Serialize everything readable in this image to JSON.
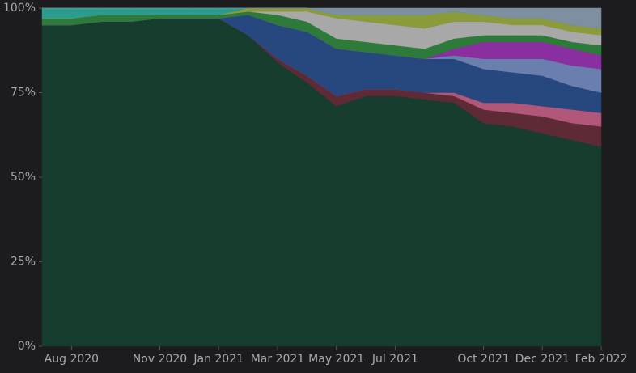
{
  "chart_data": {
    "type": "area",
    "stacked": true,
    "x": [
      "2020-07",
      "2020-08",
      "2020-09",
      "2020-10",
      "2020-11",
      "2020-12",
      "2021-01",
      "2021-02",
      "2021-03",
      "2021-04",
      "2021-05",
      "2021-06",
      "2021-07",
      "2021-08",
      "2021-09",
      "2021-10",
      "2021-11",
      "2021-12",
      "2022-01",
      "2022-02"
    ],
    "series": [
      {
        "color": "#163d2e",
        "values": [
          95,
          95,
          96,
          96,
          97,
          97,
          97,
          92,
          84,
          78,
          71,
          74,
          74,
          73,
          72,
          66,
          65,
          63,
          61,
          59
        ]
      },
      {
        "color": "#5e2a35",
        "values": [
          0,
          0,
          0,
          0,
          0,
          0,
          0,
          0,
          1,
          2,
          3,
          2,
          2,
          2,
          2,
          4,
          4,
          5,
          5,
          6
        ]
      },
      {
        "color": "#b0577a",
        "values": [
          0,
          0,
          0,
          0,
          0,
          0,
          0,
          0,
          0,
          0,
          0,
          0,
          0,
          0,
          1,
          2,
          3,
          3,
          4,
          4
        ]
      },
      {
        "color": "#27477f",
        "values": [
          0,
          0,
          0,
          0,
          0,
          0,
          0,
          6,
          10,
          13,
          14,
          11,
          10,
          10,
          10,
          10,
          9,
          9,
          7,
          6
        ]
      },
      {
        "color": "#6b7fae",
        "values": [
          0,
          0,
          0,
          0,
          0,
          0,
          0,
          0,
          0,
          0,
          0,
          0,
          0,
          0,
          1,
          3,
          4,
          5,
          6,
          7
        ]
      },
      {
        "color": "#8a2fa0",
        "values": [
          0,
          0,
          0,
          0,
          0,
          0,
          0,
          0,
          0,
          0,
          0,
          0,
          0,
          0,
          2,
          5,
          5,
          5,
          5,
          4
        ]
      },
      {
        "color": "#2e7a3a",
        "values": [
          2,
          2,
          2,
          2,
          1,
          1,
          1,
          1,
          3,
          3,
          3,
          3,
          3,
          3,
          3,
          2,
          2,
          2,
          2,
          3
        ]
      },
      {
        "color": "#a8a8a8",
        "values": [
          0,
          0,
          0,
          0,
          0,
          0,
          0,
          0,
          1,
          3,
          6,
          6,
          6,
          6,
          5,
          4,
          3,
          3,
          3,
          3
        ]
      },
      {
        "color": "#8b9a3a",
        "values": [
          0,
          0,
          0,
          0,
          0,
          0,
          0,
          1,
          1,
          1,
          1,
          2,
          3,
          4,
          3,
          2,
          2,
          2,
          2,
          2
        ]
      },
      {
        "color": "#2a9d8f",
        "values": [
          3,
          3,
          2,
          2,
          2,
          2,
          2,
          0,
          0,
          0,
          0,
          0,
          0,
          0,
          0,
          0,
          0,
          0,
          0,
          0
        ]
      },
      {
        "color": "#7d8fa0",
        "values": [
          0,
          0,
          0,
          0,
          0,
          0,
          0,
          0,
          0,
          0,
          2,
          2,
          2,
          2,
          1,
          2,
          3,
          3,
          5,
          6
        ]
      }
    ],
    "xlim": [
      "2020-07",
      "2022-02"
    ],
    "xticks": [
      {
        "value": "2020-08",
        "label": "Aug 2020"
      },
      {
        "value": "2020-11",
        "label": "Nov 2020"
      },
      {
        "value": "2021-01",
        "label": "Jan 2021"
      },
      {
        "value": "2021-03",
        "label": "Mar 2021"
      },
      {
        "value": "2021-05",
        "label": "May 2021"
      },
      {
        "value": "2021-07",
        "label": "Jul 2021"
      },
      {
        "value": "2021-10",
        "label": "Oct 2021"
      },
      {
        "value": "2021-12",
        "label": "Dec 2021"
      },
      {
        "value": "2022-02",
        "label": "Feb 2022"
      }
    ],
    "ylim": [
      0,
      100
    ],
    "yticks": [
      {
        "value": 0,
        "label": "0%"
      },
      {
        "value": 25,
        "label": "25%"
      },
      {
        "value": 50,
        "label": "50%"
      },
      {
        "value": 75,
        "label": "75%"
      },
      {
        "value": 100,
        "label": "100%"
      }
    ],
    "grid": false
  }
}
